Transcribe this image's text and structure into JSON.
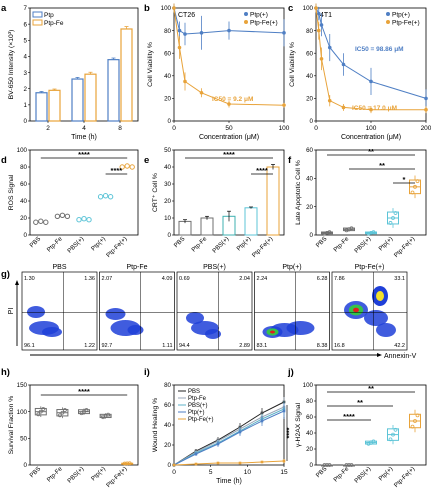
{
  "colors": {
    "ptp": "#4f7fc4",
    "ptpfe": "#e8a33a",
    "gray": "#6f6f6f",
    "teal": "#3fb1b1",
    "cyan": "#5cc4d7",
    "stars": "#000000"
  },
  "chart_data": [
    {
      "panel": "a",
      "type": "bar",
      "xlabel": "Time (h)",
      "ylabel": "BV-650 Intensity (×10³)",
      "categories": [
        "2",
        "4",
        "8"
      ],
      "ylim": [
        0,
        7
      ],
      "yticks": [
        "0",
        "1",
        "2",
        "3",
        "4",
        "5",
        "6",
        "7"
      ],
      "legend": "top-left",
      "series": [
        {
          "name": "Ptp",
          "values": [
            1.75,
            2.6,
            3.8
          ],
          "err": [
            0.08,
            0.1,
            0.1
          ]
        },
        {
          "name": "Ptp-Fe",
          "values": [
            1.9,
            2.9,
            5.7
          ],
          "err": [
            0.08,
            0.12,
            0.15
          ]
        }
      ]
    },
    {
      "panel": "b",
      "type": "scatter",
      "title": "CT26",
      "xlabel": "Concentration (μM)",
      "ylabel": "Cell Viability %",
      "xlim": [
        0,
        100
      ],
      "ylim": [
        0,
        100
      ],
      "xticks": [
        "0",
        "50",
        "100"
      ],
      "yticks": [
        "0",
        "20",
        "40",
        "60",
        "80",
        "100"
      ],
      "legend": "top-right",
      "annotation": "IC50 = 9.2 μM",
      "series": [
        {
          "name": "Ptp(+)",
          "x": [
            0,
            5,
            10,
            25,
            50,
            100
          ],
          "y": [
            100,
            80,
            77,
            78,
            80,
            78
          ],
          "err": [
            4,
            8,
            10,
            15,
            8,
            12
          ]
        },
        {
          "name": "Ptp-Fe(+)",
          "x": [
            0,
            5,
            10,
            25,
            50,
            100
          ],
          "y": [
            100,
            65,
            35,
            25,
            15,
            14
          ],
          "err": [
            4,
            10,
            8,
            4,
            3,
            2
          ]
        }
      ]
    },
    {
      "panel": "c",
      "type": "scatter",
      "title": "4T1",
      "xlabel": "Concentration (μM)",
      "ylabel": "Cell Viability %",
      "xlim": [
        0,
        200
      ],
      "ylim": [
        0,
        100
      ],
      "xticks": [
        "0",
        "100",
        "200"
      ],
      "yticks": [
        "0",
        "20",
        "40",
        "60",
        "80",
        "100"
      ],
      "legend": "top-right",
      "annotations": [
        "IC50 = 98.86 μM",
        "IC50 = 17.0 μM"
      ],
      "series": [
        {
          "name": "Ptp(+)",
          "x": [
            0,
            5,
            10,
            25,
            50,
            100,
            200
          ],
          "y": [
            100,
            95,
            85,
            65,
            50,
            35,
            20
          ],
          "err": [
            4,
            6,
            10,
            12,
            10,
            12,
            8
          ]
        },
        {
          "name": "Ptp-Fe(+)",
          "x": [
            0,
            5,
            10,
            25,
            50,
            100,
            200
          ],
          "y": [
            100,
            80,
            55,
            18,
            12,
            10,
            10
          ],
          "err": [
            4,
            8,
            10,
            5,
            3,
            3,
            3
          ]
        }
      ]
    },
    {
      "panel": "d",
      "type": "scatter",
      "ylabel": "ROS Signal",
      "categories": [
        "PBS",
        "Ptp-Fe",
        "PBS(+)",
        "Ptp(+)",
        "Ptp-Fe(+)"
      ],
      "ylim": [
        0,
        100
      ],
      "yticks": [
        "0",
        "20",
        "40",
        "60",
        "80",
        "100"
      ],
      "values": [
        15,
        22,
        18,
        45,
        80
      ],
      "significance": [
        {
          "from": 0,
          "to": 4,
          "label": "****"
        },
        {
          "from": 3,
          "to": 4,
          "label": "****"
        }
      ]
    },
    {
      "panel": "e",
      "type": "bar",
      "ylabel": "CRT⁺ Cell %",
      "categories": [
        "PBS",
        "Ptp-Fe",
        "PBS(+)",
        "Ptp(+)",
        "Ptp-Fe(+)"
      ],
      "ylim": [
        0,
        50
      ],
      "yticks": [
        "0",
        "10",
        "20",
        "30",
        "40",
        "50"
      ],
      "values": [
        8,
        10,
        11,
        16,
        40
      ],
      "err": [
        1,
        1,
        3,
        0.5,
        1.5
      ],
      "significance": [
        {
          "from": 0,
          "to": 4,
          "label": "****"
        },
        {
          "from": 3,
          "to": 4,
          "label": "****"
        }
      ]
    },
    {
      "panel": "f",
      "type": "box",
      "ylabel": "Late Apoptotic Cell %",
      "categories": [
        "PBS",
        "Ptp-Fe",
        "PBS(+)",
        "Ptp(+)",
        "Ptp-Fe(+)"
      ],
      "ylim": [
        0,
        60
      ],
      "yticks": [
        "0",
        "20",
        "40",
        "60"
      ],
      "values": [
        1.5,
        4,
        1.5,
        12,
        34
      ],
      "spread": [
        1,
        1.5,
        1,
        7,
        8
      ],
      "significance": [
        {
          "from": 0,
          "to": 4,
          "label": "**"
        },
        {
          "from": 1,
          "to": 4,
          "label": "**"
        },
        {
          "from": 3,
          "to": 4,
          "label": "*"
        }
      ]
    },
    {
      "panel": "h",
      "type": "box",
      "ylabel": "Survival Fraction %",
      "categories": [
        "PBS",
        "Ptp-Fe",
        "PBS(+)",
        "Ptp(+)",
        "Ptp-Fe(+)"
      ],
      "ylim": [
        0,
        150
      ],
      "yticks": [
        "0",
        "50",
        "100",
        "150"
      ],
      "values": [
        100,
        98,
        100,
        92,
        3
      ],
      "spread": [
        10,
        10,
        6,
        5,
        0.5
      ],
      "significance": [
        {
          "from": 0,
          "to": 4,
          "label": "****"
        }
      ]
    },
    {
      "panel": "i",
      "type": "line",
      "xlabel": "Time (h)",
      "ylabel": "Wound Healing %",
      "x": [
        0,
        3,
        6,
        9,
        12,
        15
      ],
      "xlim": [
        0,
        15
      ],
      "ylim": [
        0,
        80
      ],
      "xticks": [
        "0",
        "5",
        "10",
        "15"
      ],
      "yticks": [
        "0",
        "20",
        "40",
        "60",
        "80"
      ],
      "legend": "top-left",
      "significance_label": "****",
      "series": [
        {
          "name": "PBS",
          "values": [
            0,
            14,
            25,
            38,
            52,
            63
          ],
          "err": [
            0,
            2,
            3,
            4,
            5,
            12
          ]
        },
        {
          "name": "Ptp-Fe",
          "values": [
            0,
            13,
            24,
            36,
            48,
            58
          ],
          "err": [
            0,
            2,
            3,
            4,
            5,
            10
          ]
        },
        {
          "name": "PBS(+)",
          "values": [
            0,
            12,
            22,
            34,
            46,
            56
          ],
          "err": [
            0,
            2,
            3,
            4,
            5,
            8
          ]
        },
        {
          "name": "Ptp(+)",
          "values": [
            0,
            11,
            21,
            33,
            44,
            54
          ],
          "err": [
            0,
            2,
            3,
            4,
            5,
            8
          ]
        },
        {
          "name": "Ptp-Fe(+)",
          "values": [
            0,
            1,
            2,
            2,
            3,
            4
          ],
          "err": [
            0,
            1,
            1,
            1,
            1,
            2
          ]
        }
      ]
    },
    {
      "panel": "j",
      "type": "box",
      "ylabel": "γ-H2AX Signal",
      "categories": [
        "PBS",
        "Ptp-Fe",
        "PBS(+)",
        "Ptp(+)",
        "Ptp-Fe(+)"
      ],
      "ylim": [
        0,
        100
      ],
      "yticks": [
        "0",
        "20",
        "40",
        "60",
        "80",
        "100"
      ],
      "values": [
        0,
        0,
        28,
        38,
        55
      ],
      "spread": [
        0,
        0,
        3,
        12,
        14
      ],
      "significance": [
        {
          "from": 0,
          "to": 4,
          "label": "**"
        },
        {
          "from": 0,
          "to": 3,
          "label": "**"
        },
        {
          "from": 0,
          "to": 2,
          "label": "****"
        }
      ]
    }
  ],
  "flow": {
    "yaxis_label": "PI",
    "xaxis_label": "Annexin-V",
    "panels": [
      {
        "title": "PBS",
        "q": [
          "1.30",
          "1.36",
          "96.1",
          "1.22"
        ]
      },
      {
        "title": "Ptp-Fe",
        "q": [
          "2.07",
          "4.09",
          "92.7",
          "1.11"
        ]
      },
      {
        "title": "PBS(+)",
        "q": [
          "0.69",
          "2.04",
          "94.4",
          "2.89"
        ]
      },
      {
        "title": "Ptp(+)",
        "q": [
          "2.24",
          "6.28",
          "83.1",
          "8.38"
        ]
      },
      {
        "title": "Ptp-Fe(+)",
        "q": [
          "7.86",
          "33.1",
          "16.8",
          "42.2"
        ]
      }
    ]
  },
  "panel_letters": [
    "a",
    "b",
    "c",
    "d",
    "e",
    "f",
    "g)",
    "h)",
    "i)",
    "j)"
  ]
}
